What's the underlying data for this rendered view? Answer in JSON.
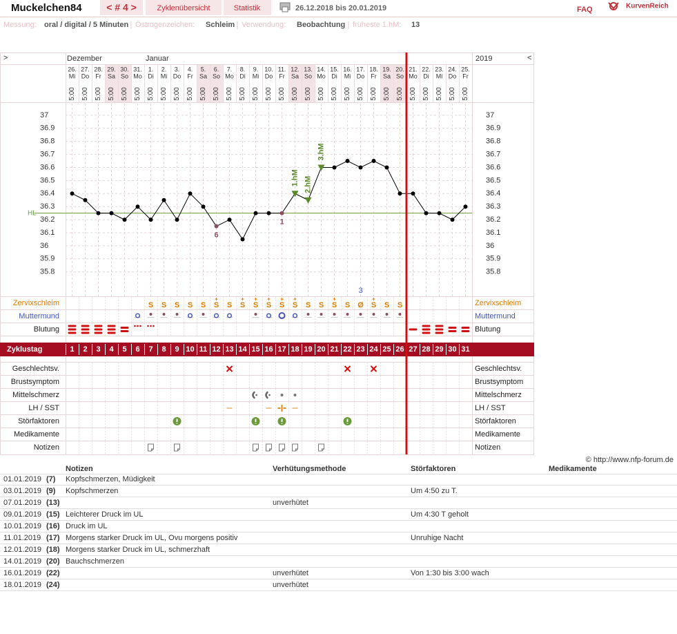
{
  "header": {
    "user": "Muckelchen84",
    "cycle_nav": "< # 4 >",
    "tabs": [
      "Zyklenübersicht",
      "Statistik"
    ],
    "date_range": "26.12.2018 bis 20.01.2019",
    "faq": "FAQ",
    "logo": "KurvenReich"
  },
  "info": [
    {
      "label": "Messung:",
      "value": "oral / digital / 5 Minuten"
    },
    {
      "label": "Östrogenzeichen:",
      "value": "Schleim"
    },
    {
      "label": "Verwendung:",
      "value": "Beobachtung"
    },
    {
      "label": "früheste 1.hM:",
      "value": 13
    }
  ],
  "chart_data": {
    "type": "line",
    "nav_left": ">",
    "nav_right": "<",
    "months": [
      "Dezember",
      "Januar"
    ],
    "year": "2019",
    "categories": [
      "26.",
      "27.",
      "28.",
      "29.",
      "30.",
      "31.",
      "1.",
      "2.",
      "3.",
      "4.",
      "5.",
      "6.",
      "7.",
      "8.",
      "9.",
      "10.",
      "11.",
      "12.",
      "13.",
      "14.",
      "15.",
      "16.",
      "17.",
      "18.",
      "19.",
      "20.",
      "21.",
      "22.",
      "23.",
      "24.",
      "25."
    ],
    "weekdays": [
      "Mi",
      "Do",
      "Fr",
      "Sa",
      "So",
      "Mo",
      "Di",
      "Mi",
      "Do",
      "Fr",
      "Sa",
      "So",
      "Mo",
      "Di",
      "Mi",
      "Do",
      "Fr",
      "Sa",
      "So",
      "Mo",
      "Di",
      "Mi",
      "Do",
      "Fr",
      "Sa",
      "So",
      "Mo",
      "Di",
      "Mi",
      "Do",
      "Fr"
    ],
    "times": [
      "5:00",
      "5:00",
      "5:00",
      "5:00",
      "5:00",
      "5:00",
      "5:00",
      "5:00",
      "5:00",
      "5:00",
      "5:00",
      "5:00",
      "5:00",
      "5:00",
      "5:00",
      "5:00",
      "5:00",
      "5:00",
      "5:00",
      "5:00",
      "5:00",
      "5:00",
      "5:00",
      "5:00",
      "5:00",
      "5:00",
      "5:00",
      "5:00",
      "5:00",
      "5:00",
      "5:00"
    ],
    "series": [
      {
        "color": "#000000",
        "values": [
          36.4,
          36.35,
          36.25,
          36.25,
          36.2,
          36.3,
          36.2,
          36.35,
          36.2,
          36.4,
          36.3,
          36.15,
          36.2,
          36.05,
          36.25,
          36.25,
          36.25,
          36.4,
          36.35,
          36.6,
          36.6,
          36.65,
          36.6,
          36.65,
          36.6,
          36.4,
          36.4,
          36.25,
          36.25,
          36.2,
          36.3
        ]
      }
    ],
    "ylim": [
      35.6,
      37.1
    ],
    "yticks": [
      37,
      36.9,
      36.8,
      36.7,
      36.6,
      36.5,
      36.4,
      36.3,
      36.2,
      36.1,
      36,
      35.9,
      35.8
    ],
    "grid": true,
    "coverline": {
      "label": "HL",
      "value": 36.25,
      "color": "#6a9a3a"
    },
    "markers": [
      {
        "label": "1.hM",
        "day": 18
      },
      {
        "label": "2.hM",
        "day": 19
      },
      {
        "label": "3.hM",
        "day": 20
      }
    ],
    "marker_color": "#5a8a2a",
    "point_labels": [
      {
        "label": "6",
        "day": 12
      },
      {
        "label": "1",
        "day": 17
      }
    ],
    "point_label_color": "#8a5060",
    "cycle_end": 26,
    "mucus": {
      "label": "Zervixschleim",
      "color": "#e07b00",
      "symbols": [
        null,
        null,
        null,
        null,
        null,
        null,
        {
          "symbol": "S"
        },
        {
          "symbol": "S"
        },
        {
          "symbol": "S"
        },
        {
          "symbol": "S"
        },
        {
          "symbol": "S"
        },
        {
          "symbol": "S",
          "plus": true
        },
        {
          "symbol": "S"
        },
        {
          "symbol": "S",
          "plus": true
        },
        {
          "symbol": "S",
          "plus": true
        },
        {
          "symbol": "S",
          "plus": true
        },
        {
          "symbol": "S",
          "plus": true
        },
        {
          "symbol": "S",
          "plus": true
        },
        {
          "symbol": "S"
        },
        {
          "symbol": "S"
        },
        {
          "symbol": "S",
          "plus": true
        },
        {
          "symbol": "S"
        },
        {
          "symbol": "Ø"
        },
        {
          "symbol": "S",
          "plus": true
        },
        {
          "symbol": "S"
        },
        {
          "symbol": "S"
        },
        null,
        null,
        null,
        null,
        null
      ]
    },
    "cervix": {
      "label": "Muttermund",
      "color": "#4455bb",
      "states": [
        null,
        null,
        null,
        null,
        null,
        "ring",
        "dot",
        "dot",
        "dot",
        "ring",
        "dot",
        "ring",
        "ring",
        null,
        "dot",
        "ring",
        "ring-large",
        "ring",
        "dot",
        "dot",
        "dot",
        "dot",
        "dot",
        "dot",
        "dot",
        "dot",
        null,
        null,
        null,
        null,
        null
      ],
      "annotation": {
        "text": "3",
        "day": 23
      }
    },
    "bleeding": {
      "label": "Blutung",
      "color": "#d01010",
      "levels": [
        "strong",
        "strong",
        "strong",
        "strong",
        "medium",
        "spotting",
        "spotting",
        null,
        null,
        null,
        null,
        null,
        null,
        null,
        null,
        null,
        null,
        null,
        null,
        null,
        null,
        null,
        null,
        null,
        null,
        null,
        "light",
        "strong",
        "strong",
        "medium",
        "medium"
      ]
    },
    "cycle_day": {
      "label": "Zyklustag",
      "values": [
        1,
        2,
        3,
        4,
        5,
        6,
        7,
        8,
        9,
        10,
        11,
        12,
        13,
        14,
        15,
        16,
        17,
        18,
        19,
        20,
        21,
        22,
        23,
        24,
        25,
        26,
        27,
        28,
        29,
        30,
        31
      ]
    },
    "intercourse": {
      "label": "Geschlechtsv.",
      "days": [
        13,
        22,
        24
      ]
    },
    "breast": {
      "label": "Brustsymptom",
      "days": []
    },
    "mittelschmerz": {
      "label": "Mittelschmerz",
      "entries": [
        {
          "day": 15,
          "kind": "side"
        },
        {
          "day": 16,
          "kind": "side"
        },
        {
          "day": 17,
          "kind": "center"
        },
        {
          "day": 18,
          "kind": "center"
        }
      ]
    },
    "lh": {
      "label": "LH / SST",
      "entries": [
        {
          "day": 13,
          "result": "negative"
        },
        {
          "day": 16,
          "result": "negative"
        },
        {
          "day": 17,
          "result": "positive"
        },
        {
          "day": 18,
          "result": "negative"
        }
      ]
    },
    "disturbances": {
      "label": "Störfaktoren",
      "days": [
        9,
        15,
        17,
        22
      ]
    },
    "medication": {
      "label": "Medikamente",
      "days": []
    },
    "notes": {
      "label": "Notizen",
      "days": [
        7,
        9,
        15,
        16,
        17,
        18,
        20
      ]
    }
  },
  "copyright": "© http://www.nfp-forum.de",
  "notes_table": {
    "headers": [
      "Notizen",
      "Verhütungsmethode",
      "Störfaktoren",
      "Medikamente"
    ],
    "rows": [
      {
        "date": "01.01.2019",
        "day": "(7)",
        "note": "Kopfschmerzen, Müdigkeit"
      },
      {
        "date": "03.01.2019",
        "day": "(9)",
        "note": "Kopfschmerzen",
        "disturbance": "Um 4:50 zu T."
      },
      {
        "date": "07.01.2019",
        "day": "(13)",
        "contraception": "unverhütet"
      },
      {
        "date": "09.01.2019",
        "day": "(15)",
        "note": "Leichterer Druck im UL",
        "disturbance": "Um 4:30 T geholt"
      },
      {
        "date": "10.01.2019",
        "day": "(16)",
        "note": "Druck im UL"
      },
      {
        "date": "11.01.2019",
        "day": "(17)",
        "note": "Morgens starker Druck im UL, Ovu morgens positiv",
        "disturbance": "Unruhige Nacht"
      },
      {
        "date": "12.01.2019",
        "day": "(18)",
        "note": "Morgens starker Druck im UL, schmerzhaft"
      },
      {
        "date": "14.01.2019",
        "day": "(20)",
        "note": "Bauchschmerzen"
      },
      {
        "date": "16.01.2019",
        "day": "(22)",
        "contraception": "unverhütet",
        "disturbance": "Von 1:30 bis 3:00 wach"
      },
      {
        "date": "18.01.2019",
        "day": "(24)",
        "contraception": "unverhütet"
      }
    ]
  }
}
